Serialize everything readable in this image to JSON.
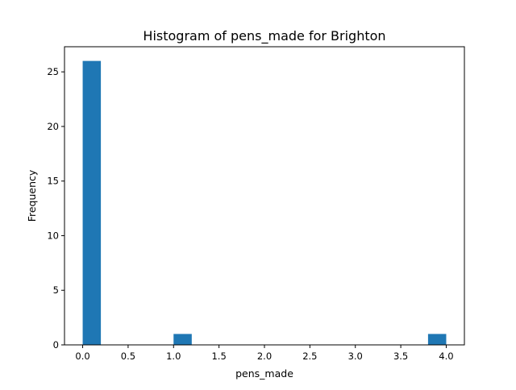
{
  "chart_data": {
    "type": "bar",
    "subtype": "histogram",
    "title": "Histogram of pens_made for Brighton",
    "xlabel": "pens_made",
    "ylabel": "Frequency",
    "bar_color": "#1f77b4",
    "bins": [
      {
        "start": 0.0,
        "end": 0.2,
        "count": 26
      },
      {
        "start": 0.2,
        "end": 0.4,
        "count": 0
      },
      {
        "start": 0.4,
        "end": 0.6,
        "count": 0
      },
      {
        "start": 0.6,
        "end": 0.8,
        "count": 0
      },
      {
        "start": 0.8,
        "end": 1.0,
        "count": 0
      },
      {
        "start": 1.0,
        "end": 1.2,
        "count": 1
      },
      {
        "start": 1.2,
        "end": 1.4,
        "count": 0
      },
      {
        "start": 1.4,
        "end": 1.6,
        "count": 0
      },
      {
        "start": 1.6,
        "end": 1.8,
        "count": 0
      },
      {
        "start": 1.8,
        "end": 2.0,
        "count": 0
      },
      {
        "start": 2.0,
        "end": 2.2,
        "count": 0
      },
      {
        "start": 2.2,
        "end": 2.4,
        "count": 0
      },
      {
        "start": 2.4,
        "end": 2.6,
        "count": 0
      },
      {
        "start": 2.6,
        "end": 2.8,
        "count": 0
      },
      {
        "start": 2.8,
        "end": 3.0,
        "count": 0
      },
      {
        "start": 3.0,
        "end": 3.2,
        "count": 0
      },
      {
        "start": 3.2,
        "end": 3.4,
        "count": 0
      },
      {
        "start": 3.4,
        "end": 3.6,
        "count": 0
      },
      {
        "start": 3.6,
        "end": 3.8,
        "count": 0
      },
      {
        "start": 3.8,
        "end": 4.0,
        "count": 1
      }
    ],
    "xlim": [
      -0.2,
      4.2
    ],
    "ylim": [
      0,
      27.3
    ],
    "xticks": [
      0.0,
      0.5,
      1.0,
      1.5,
      2.0,
      2.5,
      3.0,
      3.5,
      4.0
    ],
    "xtick_labels": [
      "0.0",
      "0.5",
      "1.0",
      "1.5",
      "2.0",
      "2.5",
      "3.0",
      "3.5",
      "4.0"
    ],
    "yticks": [
      0,
      5,
      10,
      15,
      20,
      25
    ],
    "ytick_labels": [
      "0",
      "5",
      "10",
      "15",
      "20",
      "25"
    ],
    "grid": false,
    "legend": "none"
  }
}
